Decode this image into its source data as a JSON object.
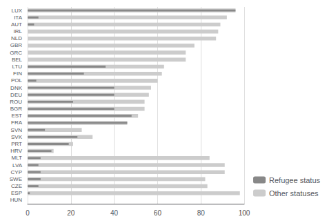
{
  "chart_data": {
    "type": "bar",
    "orientation": "horizontal",
    "categories": [
      "LUX",
      "ITA",
      "AUT",
      "IRL",
      "NLD",
      "GBR",
      "GRC",
      "BEL",
      "LTU",
      "FIN",
      "POL",
      "DNK",
      "DEU",
      "ROU",
      "BGR",
      "EST",
      "FRA",
      "SVN",
      "SVK",
      "PRT",
      "HRV",
      "MLT",
      "LVA",
      "CYP",
      "SWE",
      "CZE",
      "ESP",
      "HUN"
    ],
    "series": [
      {
        "name": "Other statuses",
        "color": "#cccccc",
        "values": [
          96,
          92,
          89,
          88,
          87,
          77,
          73,
          73,
          63,
          62,
          60,
          57,
          56,
          54,
          54,
          51,
          46,
          25,
          30,
          21,
          12,
          84,
          91,
          91,
          82,
          83,
          98,
          0
        ]
      },
      {
        "name": "Refugee status",
        "color": "#888888",
        "values": [
          96,
          5,
          3,
          0,
          0,
          0,
          0,
          0,
          36,
          26,
          4,
          40,
          40,
          21,
          40,
          48,
          46,
          8,
          23,
          19,
          11,
          6,
          5,
          6,
          6,
          5,
          1,
          0
        ]
      }
    ],
    "xlim": [
      0,
      100
    ],
    "xticks": [
      0,
      20,
      40,
      60,
      80,
      100
    ],
    "grid": true,
    "legend": "lower right"
  }
}
